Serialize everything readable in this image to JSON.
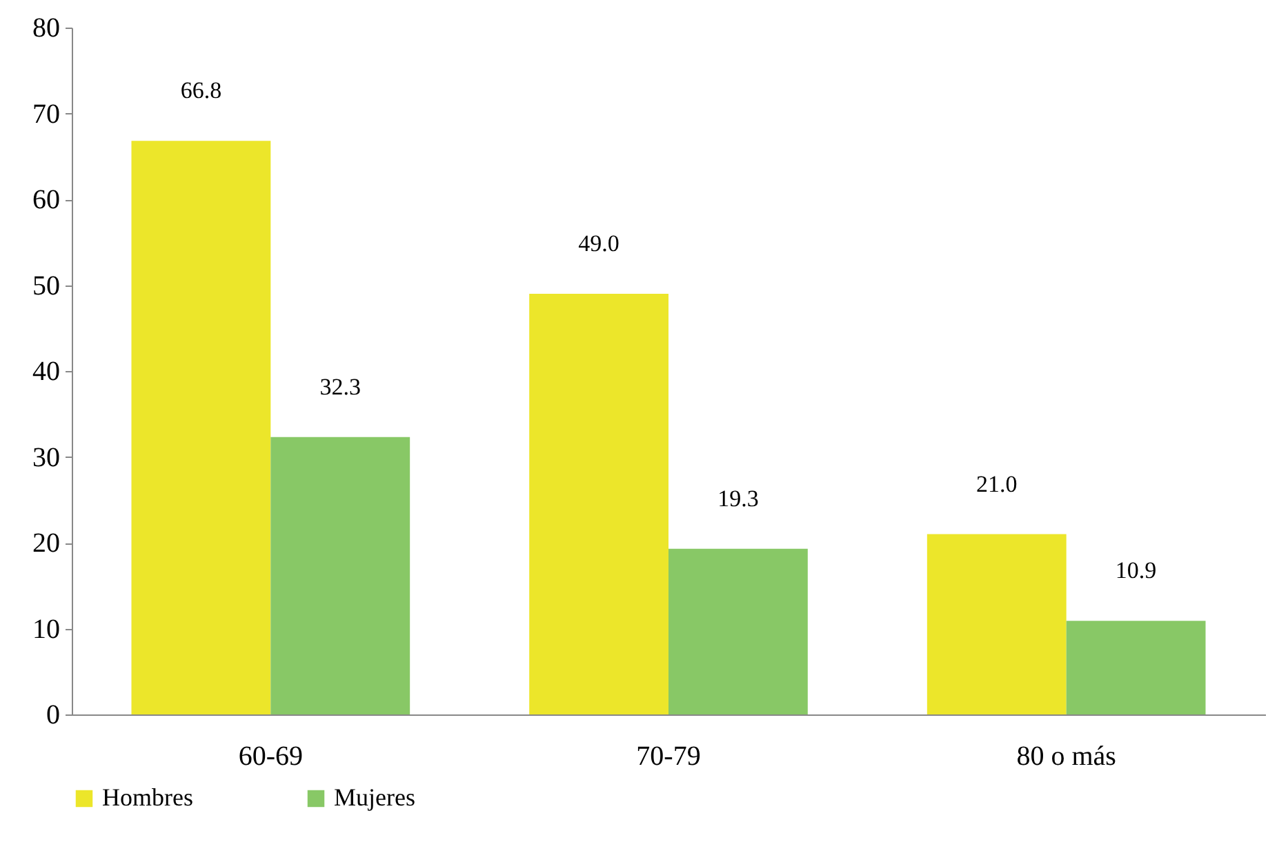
{
  "chart_data": {
    "type": "bar",
    "categories": [
      "60-69",
      "70-79",
      "80 o más"
    ],
    "series": [
      {
        "name": "Hombres",
        "color": "#ece62a",
        "values": [
          66.8,
          49.0,
          21.0
        ],
        "value_labels": [
          "66.8",
          "49.0",
          "21.0"
        ]
      },
      {
        "name": "Mujeres",
        "color": "#88c866",
        "values": [
          32.3,
          19.3,
          10.9
        ],
        "value_labels": [
          "32.3",
          "19.3",
          "10.9"
        ]
      }
    ],
    "ylim": [
      0,
      80
    ],
    "yticks": [
      0,
      10,
      20,
      30,
      40,
      50,
      60,
      70,
      80
    ],
    "grid": false,
    "legend": "bottom"
  }
}
